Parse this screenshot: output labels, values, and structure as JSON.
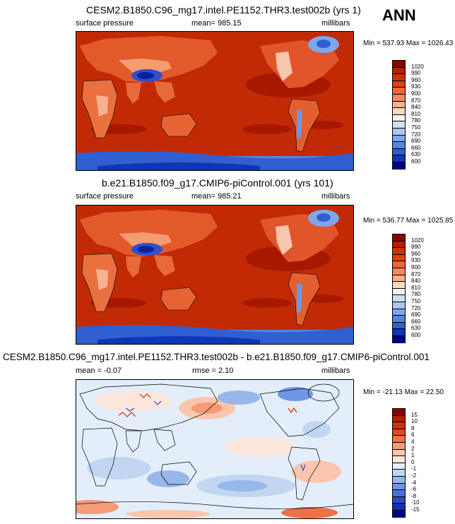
{
  "annual_label": "ANN",
  "panels": [
    {
      "title": "CESM2.B1850.C96_mg17.intel.PE1152.THR3.test002b (yrs 1)",
      "variable": "surface pressure",
      "stat_text": "mean= 985.15",
      "units": "millibars",
      "minmax": "Min = 537.93 Max = 1026.43"
    },
    {
      "title": "b.e21.B1850.f09_g17.CMIP6-piControl.001 (yrs 101)",
      "variable": "surface pressure",
      "stat_text": "mean= 985.21",
      "units": "millibars",
      "minmax": "Min = 536.77 Max = 1025.85"
    },
    {
      "title": "CESM2.B1850.C96_mg17.intel.PE1152.THR3.test002b - b.e21.B1850.f09_g17.CMIP6-piControl.001",
      "stat_left": "mean =  -0.07",
      "stat_mid": "rmse =   2.10",
      "units": "millibars",
      "minmax": "Min = -21.13 Max =  22.50"
    }
  ],
  "colorbars": {
    "pressure": {
      "labels": [
        "1020",
        "990",
        "960",
        "930",
        "900",
        "870",
        "840",
        "810",
        "780",
        "750",
        "720",
        "690",
        "660",
        "630",
        "600"
      ],
      "colors": [
        "#8b0000",
        "#b22000",
        "#cc3300",
        "#dd4411",
        "#ee6633",
        "#f58a5c",
        "#f9b08c",
        "#fcd7c2",
        "#f3f3f3",
        "#cfe0f2",
        "#a9c6ef",
        "#7ea7ea",
        "#5585e0",
        "#2f5fd0",
        "#1035b8",
        "#00008b"
      ]
    },
    "difference": {
      "labels": [
        "15",
        "10",
        "8",
        "6",
        "4",
        "2",
        "1",
        "0",
        "-1",
        "-2",
        "-4",
        "-6",
        "-8",
        "-10",
        "-15"
      ],
      "colors": [
        "#8b0000",
        "#b22000",
        "#cc3300",
        "#e04a1e",
        "#ef7048",
        "#f69a78",
        "#fbc6ad",
        "#fde7dc",
        "#e3eefa",
        "#c2d6f2",
        "#98b8ec",
        "#6e96e4",
        "#4772d8",
        "#2a4fc6",
        "#1230b0",
        "#00008b"
      ]
    }
  }
}
